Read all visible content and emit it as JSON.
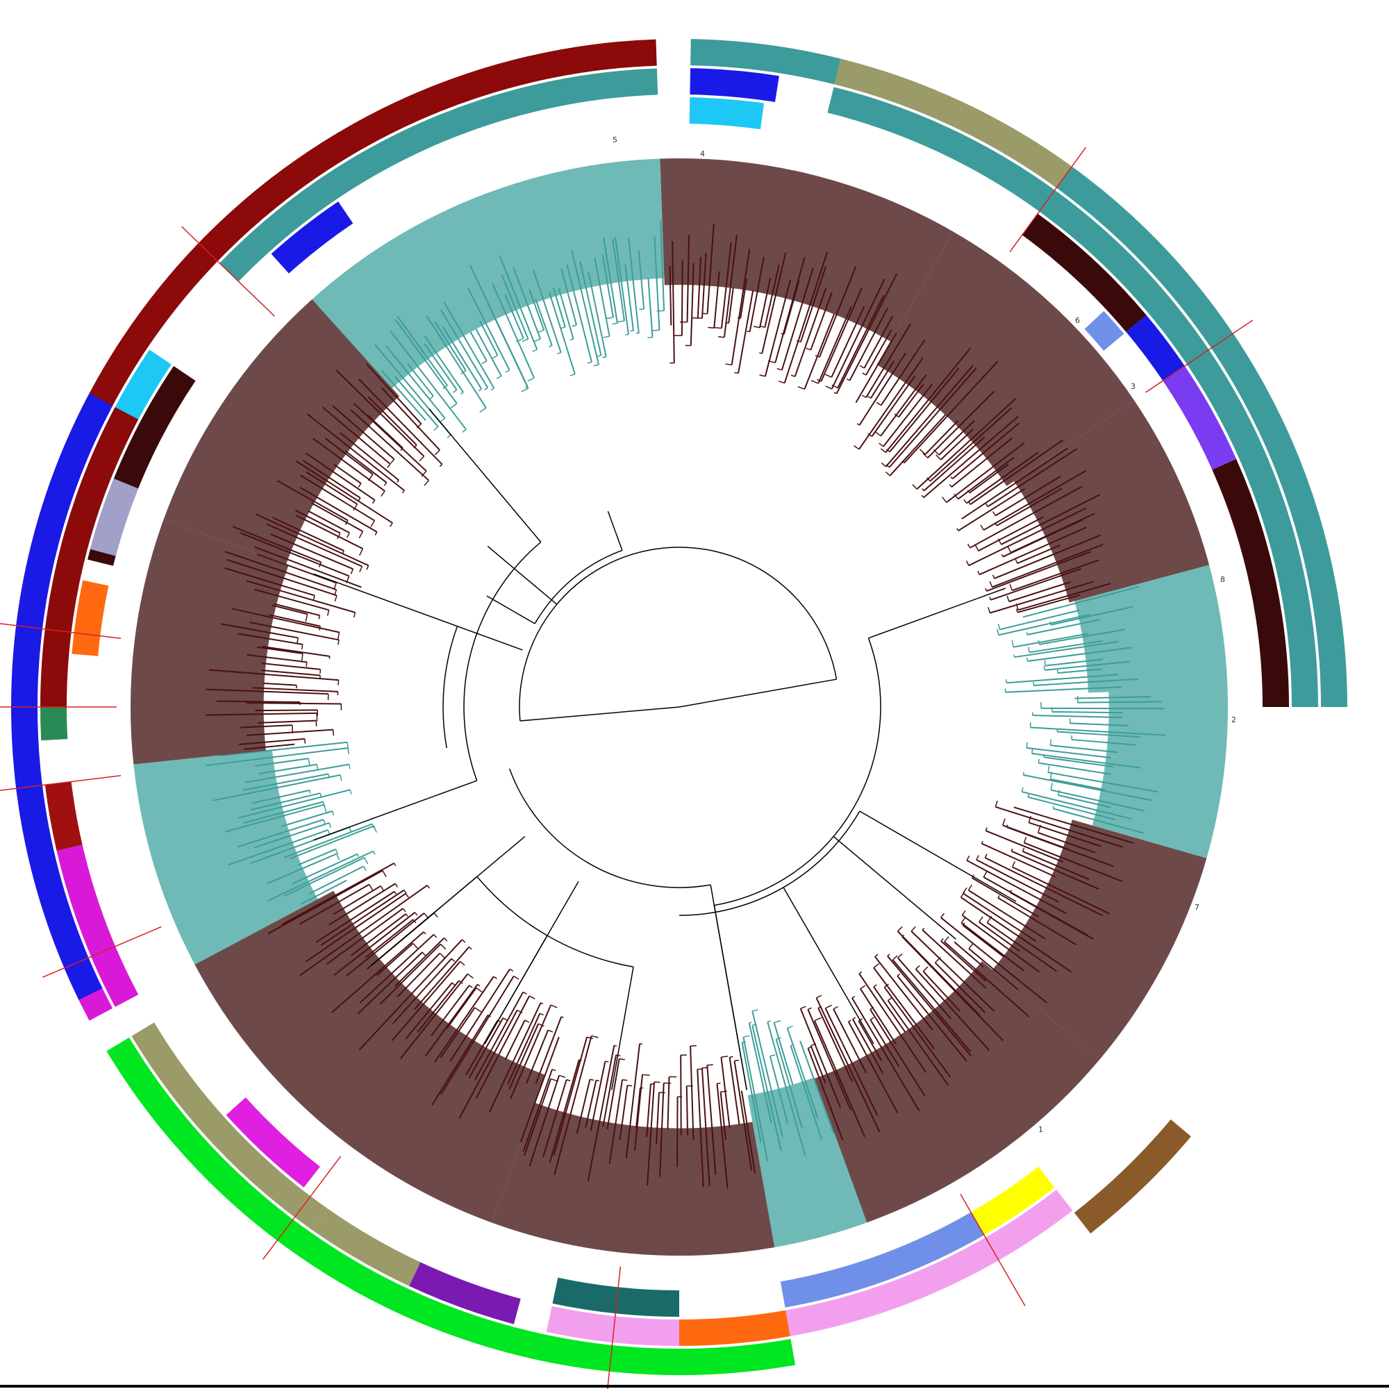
{
  "colors": {
    "branch_dark": "#4a1010",
    "branch_teal": "#3c9d98",
    "fan_dark": "#5e3535",
    "fan_teal": "#5fb3ae",
    "backbone": "#000000",
    "cut_line": "#d62020"
  },
  "clade_labels": [
    "1",
    "2",
    "3",
    "4",
    "5",
    "6",
    "7",
    "8"
  ],
  "leaf_fans": [
    {
      "from": 152,
      "to": 174,
      "color": "teal"
    },
    {
      "from": 174,
      "to": 200,
      "color": "dark"
    },
    {
      "from": 200,
      "to": 228,
      "color": "dark"
    },
    {
      "from": 228,
      "to": 268,
      "color": "teal"
    },
    {
      "from": 268,
      "to": 300,
      "color": "dark"
    },
    {
      "from": 300,
      "to": 326,
      "color": "dark"
    },
    {
      "from": 326,
      "to": 345,
      "color": "dark"
    },
    {
      "from": 345,
      "to": 358,
      "color": "teal"
    },
    {
      "from": 358,
      "to": 376,
      "color": "teal"
    },
    {
      "from": 376,
      "to": 400,
      "color": "dark"
    },
    {
      "from": 400,
      "to": 430,
      "color": "dark"
    },
    {
      "from": 430,
      "to": 440,
      "color": "teal"
    },
    {
      "from": 440,
      "to": 470,
      "color": "dark"
    },
    {
      "from": 470,
      "to": 512,
      "color": "dark"
    }
  ],
  "ring_segments": [
    {
      "ring": 0,
      "from": 152,
      "to": 173,
      "color": "#d81ad8"
    },
    {
      "ring": 1,
      "from": 152,
      "to": 167,
      "color": "#d81ad8"
    },
    {
      "ring": 1,
      "from": 167,
      "to": 173,
      "color": "#a01010"
    },
    {
      "ring": 1,
      "from": 177,
      "to": 180,
      "color": "#2a8a55"
    },
    {
      "ring": 0,
      "from": 183,
      "to": 224,
      "color": "#8c0a0a"
    },
    {
      "ring": 1,
      "from": 184,
      "to": 214,
      "color": "#1ec8f5"
    },
    {
      "ring": 2,
      "from": 194,
      "to": 214,
      "color": "#3a0a0a"
    },
    {
      "ring": 0,
      "from": 224,
      "to": 268,
      "color": "#8c0a0a"
    },
    {
      "ring": 1,
      "from": 224,
      "to": 268,
      "color": "#3d9b9b"
    },
    {
      "ring": 2,
      "from": 228,
      "to": 236,
      "color": "#1a1ae6"
    },
    {
      "ring": 1,
      "from": 271,
      "to": 279,
      "color": "#1a1ae6"
    },
    {
      "ring": 0,
      "from": 271,
      "to": 284,
      "color": "#3d9b9b"
    },
    {
      "ring": 2,
      "from": 271,
      "to": 278,
      "color": "#1ec8f5"
    },
    {
      "ring": 0,
      "from": 284,
      "to": 306,
      "color": "#9b9b6a"
    },
    {
      "ring": 1,
      "from": 284,
      "to": 306,
      "color": "#3d9b9b"
    },
    {
      "ring": 1,
      "from": 306,
      "to": 326,
      "color": "#3d9b9b"
    },
    {
      "ring": 0,
      "from": 306,
      "to": 326,
      "color": "#3d9b9b"
    },
    {
      "ring": 2,
      "from": 306,
      "to": 320,
      "color": "#3a0a0a"
    },
    {
      "ring": 2,
      "from": 320,
      "to": 326,
      "color": "#1a1ae6"
    },
    {
      "ring": 3,
      "from": 317,
      "to": 320,
      "color": "#6f8fe8"
    },
    {
      "ring": 1,
      "from": 326,
      "to": 360,
      "color": "#3d9b9b"
    },
    {
      "ring": 0,
      "from": 326,
      "to": 360,
      "color": "#3d9b9b"
    },
    {
      "ring": 2,
      "from": 326,
      "to": 336,
      "color": "#7a3cf0"
    },
    {
      "ring": 2,
      "from": 336,
      "to": 360,
      "color": "#3a0a0a"
    },
    {
      "ring": 0,
      "from": 400,
      "to": 412,
      "color": "#8b5a2b"
    },
    {
      "ring": 1,
      "from": 412,
      "to": 440,
      "color": "#f2a0ee"
    },
    {
      "ring": 2,
      "from": 420,
      "to": 440,
      "color": "#6f8fe8"
    },
    {
      "ring": 2,
      "from": 412,
      "to": 420,
      "color": "#ffff00"
    },
    {
      "ring": 0,
      "from": 440,
      "to": 465,
      "color": "#00e620"
    },
    {
      "ring": 1,
      "from": 440,
      "to": 450,
      "color": "#ff6a10"
    },
    {
      "ring": 1,
      "from": 450,
      "to": 462,
      "color": "#f2a0ee"
    },
    {
      "ring": 2,
      "from": 450,
      "to": 462,
      "color": "#1a6a6a"
    },
    {
      "ring": 0,
      "from": 465,
      "to": 485,
      "color": "#00e620"
    },
    {
      "ring": 1,
      "from": 465,
      "to": 475,
      "color": "#7a1ab0"
    },
    {
      "ring": 1,
      "from": 475,
      "to": 485,
      "color": "#9b9b6a"
    },
    {
      "ring": 0,
      "from": 485,
      "to": 509,
      "color": "#00e620"
    },
    {
      "ring": 1,
      "from": 485,
      "to": 509,
      "color": "#9b9b6a"
    },
    {
      "ring": 2,
      "from": 488,
      "to": 498,
      "color": "#e020e0"
    },
    {
      "ring": 0,
      "from": 514,
      "to": 555,
      "color": "#1a1ae6"
    },
    {
      "ring": 1,
      "from": 540,
      "to": 555,
      "color": "#8c0a0a"
    },
    {
      "ring": 2,
      "from": 545,
      "to": 552,
      "color": "#ff6a10"
    },
    {
      "ring": 0,
      "from": 555,
      "to": 568,
      "color": "#1a1ae6"
    },
    {
      "ring": 1,
      "from": 555,
      "to": 568,
      "color": "#8c0a0a"
    },
    {
      "ring": 2,
      "from": 555,
      "to": 562,
      "color": "#a0a0c8"
    }
  ],
  "cut_angles": [
    173,
    224,
    306,
    326,
    420,
    456,
    487,
    540,
    547,
    517
  ]
}
